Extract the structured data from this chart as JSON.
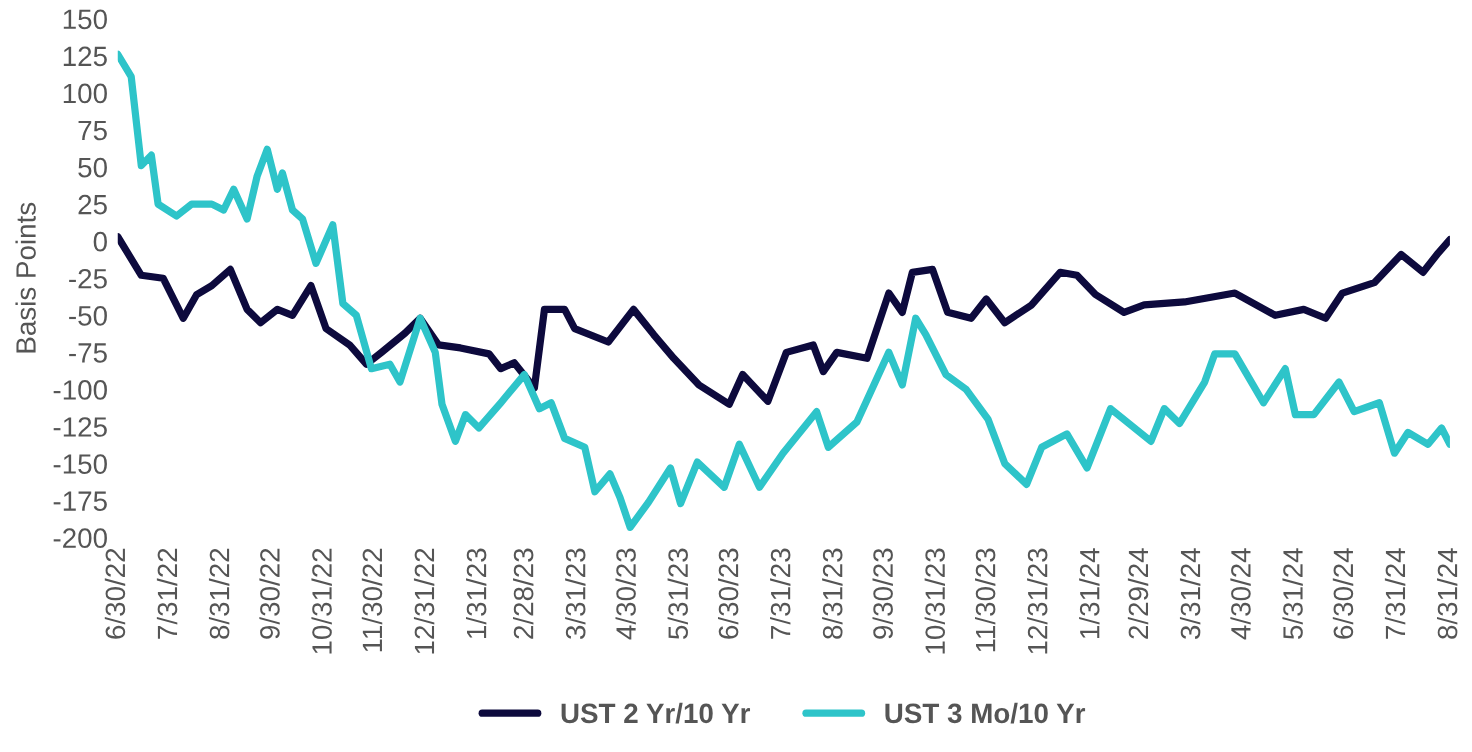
{
  "chart_data": {
    "type": "line",
    "ylabel": "Basis Points",
    "xlim": [
      "2022-06-30",
      "2024-08-31"
    ],
    "ylim": [
      -200,
      150
    ],
    "yticks": [
      -200,
      -175,
      -150,
      -125,
      -100,
      -75,
      -50,
      -25,
      0,
      25,
      50,
      75,
      100,
      125,
      150
    ],
    "xticks": [
      {
        "value": "2022-06-30",
        "label": "6/30/22"
      },
      {
        "value": "2022-07-31",
        "label": "7/31/22"
      },
      {
        "value": "2022-08-31",
        "label": "8/31/22"
      },
      {
        "value": "2022-09-30",
        "label": "9/30/22"
      },
      {
        "value": "2022-10-31",
        "label": "10/31/22"
      },
      {
        "value": "2022-11-30",
        "label": "11/30/22"
      },
      {
        "value": "2022-12-31",
        "label": "12/31/22"
      },
      {
        "value": "2023-01-31",
        "label": "1/31/23"
      },
      {
        "value": "2023-02-28",
        "label": "2/28/23"
      },
      {
        "value": "2023-03-31",
        "label": "3/31/23"
      },
      {
        "value": "2023-04-30",
        "label": "4/30/23"
      },
      {
        "value": "2023-05-31",
        "label": "5/31/23"
      },
      {
        "value": "2023-06-30",
        "label": "6/30/23"
      },
      {
        "value": "2023-07-31",
        "label": "7/31/23"
      },
      {
        "value": "2023-08-31",
        "label": "8/31/23"
      },
      {
        "value": "2023-09-30",
        "label": "9/30/23"
      },
      {
        "value": "2023-10-31",
        "label": "10/31/23"
      },
      {
        "value": "2023-11-30",
        "label": "11/30/23"
      },
      {
        "value": "2023-12-31",
        "label": "12/31/23"
      },
      {
        "value": "2024-01-31",
        "label": "1/31/24"
      },
      {
        "value": "2024-02-29",
        "label": "2/29/24"
      },
      {
        "value": "2024-03-31",
        "label": "3/31/24"
      },
      {
        "value": "2024-04-30",
        "label": "4/30/24"
      },
      {
        "value": "2024-05-31",
        "label": "5/31/24"
      },
      {
        "value": "2024-06-30",
        "label": "6/30/24"
      },
      {
        "value": "2024-07-31",
        "label": "7/31/24"
      },
      {
        "value": "2024-08-31",
        "label": "8/31/24"
      }
    ],
    "grid": false,
    "legend": "bottom",
    "marker": "none",
    "line_style": "solid",
    "series": [
      {
        "name": "UST 2 Yr/10 Yr",
        "color": "#0d0a3d",
        "x": [
          "2022-06-30",
          "2022-07-14",
          "2022-07-27",
          "2022-08-08",
          "2022-08-16",
          "2022-08-25",
          "2022-09-05",
          "2022-09-15",
          "2022-09-23",
          "2022-10-03",
          "2022-10-12",
          "2022-10-23",
          "2022-11-01",
          "2022-11-15",
          "2022-11-25",
          "2022-12-04",
          "2022-12-18",
          "2022-12-27",
          "2023-01-07",
          "2023-01-20",
          "2023-02-06",
          "2023-02-13",
          "2023-02-21",
          "2023-03-05",
          "2023-03-11",
          "2023-03-23",
          "2023-03-29",
          "2023-04-18",
          "2023-05-03",
          "2023-05-15",
          "2023-05-27",
          "2023-06-11",
          "2023-06-29",
          "2023-07-07",
          "2023-07-22",
          "2023-08-02",
          "2023-08-18",
          "2023-08-24",
          "2023-09-01",
          "2023-09-19",
          "2023-10-02",
          "2023-10-10",
          "2023-10-16",
          "2023-10-28",
          "2023-11-06",
          "2023-11-20",
          "2023-11-29",
          "2023-12-10",
          "2023-12-26",
          "2024-01-12",
          "2024-01-22",
          "2024-02-02",
          "2024-02-19",
          "2024-03-02",
          "2024-03-26",
          "2024-04-25",
          "2024-05-19",
          "2024-06-05",
          "2024-06-18",
          "2024-06-28",
          "2024-07-17",
          "2024-08-02",
          "2024-08-15",
          "2024-08-24",
          "2024-08-31"
        ],
        "values": [
          3,
          -23,
          -25,
          -52,
          -36,
          -30,
          -19,
          -46,
          -55,
          -46,
          -50,
          -30,
          -59,
          -70,
          -83,
          -75,
          -62,
          -52,
          -70,
          -72,
          -76,
          -86,
          -82,
          -99,
          -46,
          -46,
          -59,
          -68,
          -46,
          -63,
          -79,
          -97,
          -110,
          -90,
          -108,
          -75,
          -70,
          -88,
          -75,
          -79,
          -35,
          -48,
          -21,
          -19,
          -48,
          -52,
          -39,
          -55,
          -43,
          -21,
          -23,
          -36,
          -48,
          -43,
          -41,
          -35,
          -50,
          -46,
          -52,
          -35,
          -28,
          -9,
          -21,
          -8,
          1
        ]
      },
      {
        "name": "UST 3 Mo/10 Yr",
        "color": "#2ec4c9",
        "x": [
          "2022-06-30",
          "2022-07-08",
          "2022-07-14",
          "2022-07-20",
          "2022-07-24",
          "2022-08-04",
          "2022-08-13",
          "2022-08-25",
          "2022-09-01",
          "2022-09-07",
          "2022-09-15",
          "2022-09-21",
          "2022-09-27",
          "2022-10-03",
          "2022-10-06",
          "2022-10-12",
          "2022-10-18",
          "2022-10-26",
          "2022-11-05",
          "2022-11-11",
          "2022-11-19",
          "2022-11-28",
          "2022-12-09",
          "2022-12-15",
          "2022-12-27",
          "2023-01-05",
          "2023-01-09",
          "2023-01-17",
          "2023-01-23",
          "2023-01-31",
          "2023-02-13",
          "2023-02-27",
          "2023-03-08",
          "2023-03-15",
          "2023-03-23",
          "2023-04-04",
          "2023-04-10",
          "2023-04-19",
          "2023-04-25",
          "2023-05-01",
          "2023-05-12",
          "2023-05-25",
          "2023-05-31",
          "2023-06-10",
          "2023-06-26",
          "2023-07-05",
          "2023-07-17",
          "2023-07-31",
          "2023-08-20",
          "2023-08-27",
          "2023-09-13",
          "2023-10-02",
          "2023-10-10",
          "2023-10-18",
          "2023-10-24",
          "2023-11-05",
          "2023-11-17",
          "2023-11-30",
          "2023-12-10",
          "2023-12-23",
          "2024-01-01",
          "2024-01-16",
          "2024-01-28",
          "2024-02-11",
          "2024-03-06",
          "2024-03-14",
          "2024-03-23",
          "2024-04-07",
          "2024-04-13",
          "2024-04-25",
          "2024-05-12",
          "2024-05-25",
          "2024-05-31",
          "2024-06-11",
          "2024-06-26",
          "2024-07-05",
          "2024-07-20",
          "2024-07-29",
          "2024-08-06",
          "2024-08-18",
          "2024-08-26",
          "2024-08-31"
        ],
        "values": [
          126,
          111,
          51,
          58,
          25,
          17,
          25,
          25,
          21,
          35,
          15,
          44,
          62,
          35,
          46,
          21,
          15,
          -15,
          11,
          -42,
          -50,
          -86,
          -83,
          -95,
          -52,
          -75,
          -110,
          -135,
          -117,
          -126,
          -109,
          -90,
          -113,
          -109,
          -133,
          -139,
          -169,
          -157,
          -173,
          -193,
          -176,
          -153,
          -177,
          -149,
          -166,
          -137,
          -166,
          -143,
          -115,
          -139,
          -122,
          -75,
          -97,
          -52,
          -63,
          -90,
          -100,
          -120,
          -150,
          -164,
          -139,
          -130,
          -153,
          -113,
          -135,
          -113,
          -123,
          -95,
          -76,
          -76,
          -109,
          -86,
          -117,
          -117,
          -95,
          -115,
          -109,
          -143,
          -129,
          -137,
          -126,
          -137
        ]
      }
    ]
  }
}
